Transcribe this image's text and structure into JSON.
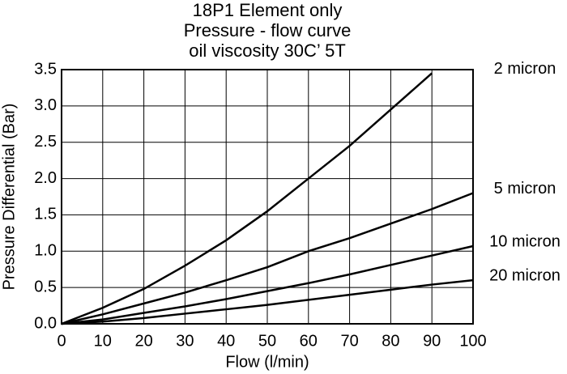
{
  "chart_data": {
    "type": "line",
    "title_lines": [
      "18P1 Element only",
      "Pressure - flow curve",
      "oil viscosity 30C’ 5T"
    ],
    "x_label": "Flow (l/min)",
    "y_label": "Pressure Differential (Bar)",
    "x": [
      0,
      10,
      20,
      30,
      40,
      50,
      60,
      70,
      80,
      90,
      100
    ],
    "series": [
      {
        "name": "2 micron",
        "color": "#000000",
        "values": [
          0,
          0.22,
          0.48,
          0.8,
          1.15,
          1.55,
          2.0,
          2.45,
          2.95,
          3.45,
          null
        ]
      },
      {
        "name": "5 micron",
        "color": "#000000",
        "values": [
          0,
          0.13,
          0.28,
          0.43,
          0.6,
          0.78,
          1.0,
          1.18,
          1.38,
          1.58,
          1.8
        ]
      },
      {
        "name": "10 micron",
        "color": "#000000",
        "values": [
          0,
          0.06,
          0.15,
          0.24,
          0.34,
          0.45,
          0.56,
          0.68,
          0.81,
          0.94,
          1.07
        ]
      },
      {
        "name": "20 micron",
        "color": "#000000",
        "values": [
          0,
          0.03,
          0.08,
          0.14,
          0.2,
          0.26,
          0.33,
          0.4,
          0.47,
          0.54,
          0.6
        ]
      }
    ],
    "xlim": [
      0,
      100
    ],
    "xticks": [
      0,
      10,
      20,
      30,
      40,
      50,
      60,
      70,
      80,
      90,
      100
    ],
    "ylim": [
      0,
      3.5
    ],
    "yticks": [
      {
        "value": 0,
        "label": "0.0"
      },
      0.5,
      {
        "value": 1,
        "label": "1.0"
      },
      1.5,
      {
        "value": 2,
        "label": "2.0"
      },
      2.5,
      {
        "value": 3,
        "label": "3.0"
      },
      3.5
    ],
    "grid": true
  }
}
